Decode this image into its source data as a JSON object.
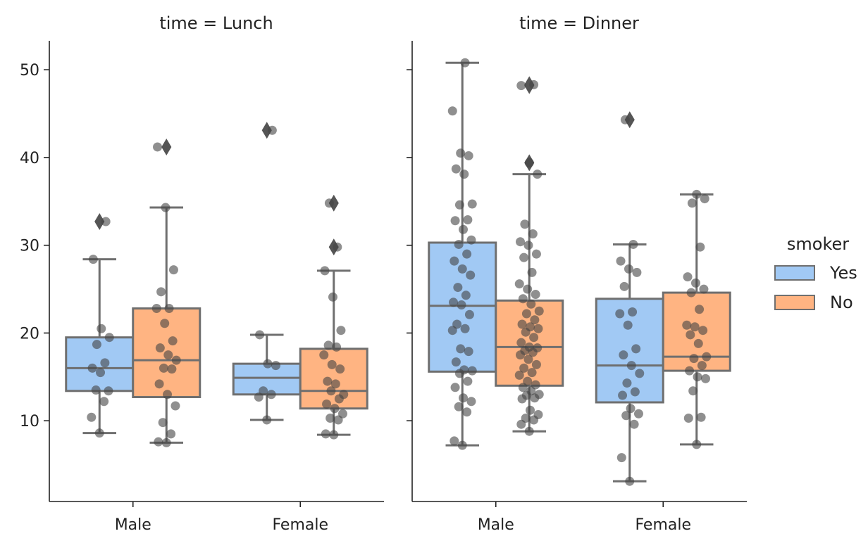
{
  "chart_data": {
    "type": "box",
    "yticks": [
      10,
      20,
      30,
      40,
      50
    ],
    "ylim": [
      0.8,
      53.3
    ],
    "categories": [
      "Male",
      "Female"
    ],
    "hue_order": [
      "Yes",
      "No"
    ],
    "colors": {
      "Yes": "#a1c9f4",
      "No": "#ffb482",
      "line": "#6f6f6f",
      "points": "#444444"
    },
    "legend": {
      "title": "smoker",
      "items": [
        {
          "label": "Yes",
          "color": "#a1c9f4"
        },
        {
          "label": "No",
          "color": "#ffb482"
        }
      ]
    },
    "panels": [
      {
        "title": "time = Lunch",
        "boxes": [
          {
            "category": "Male",
            "hue": "Yes",
            "whisker_low": 8.6,
            "q1": 13.4,
            "median": 16.0,
            "q3": 19.5,
            "whisker_high": 28.4,
            "outliers": [
              32.7
            ],
            "points": [
              8.6,
              10.4,
              12.2,
              13.5,
              13.4,
              15.5,
              16.0,
              16.6,
              18.7,
              19.5,
              20.5,
              28.4,
              32.7
            ]
          },
          {
            "category": "Male",
            "hue": "No",
            "whisker_low": 7.5,
            "q1": 12.7,
            "median": 16.9,
            "q3": 22.8,
            "whisker_high": 34.3,
            "outliers": [
              41.2
            ],
            "points": [
              7.5,
              7.6,
              8.5,
              9.8,
              11.7,
              13.0,
              14.2,
              15.9,
              16.0,
              16.9,
              17.5,
              18.3,
              19.1,
              21.1,
              22.8,
              22.8,
              24.7,
              27.2,
              34.3,
              41.2
            ]
          },
          {
            "category": "Female",
            "hue": "Yes",
            "whisker_low": 10.1,
            "q1": 13.0,
            "median": 14.9,
            "q3": 16.5,
            "whisker_high": 19.8,
            "outliers": [
              43.1
            ],
            "points": [
              10.1,
              12.7,
              13.0,
              13.4,
              16.3,
              16.5,
              19.8,
              43.1
            ]
          },
          {
            "category": "Female",
            "hue": "No",
            "whisker_low": 8.4,
            "q1": 11.4,
            "median": 13.4,
            "q3": 18.2,
            "whisker_high": 27.1,
            "outliers": [
              29.8,
              34.8
            ],
            "points": [
              8.4,
              8.5,
              10.1,
              10.3,
              10.8,
              11.4,
              11.9,
              12.5,
              13.4,
              13.0,
              14.2,
              14.5,
              15.9,
              16.4,
              17.5,
              18.4,
              18.6,
              20.3,
              24.1,
              27.1,
              29.8,
              34.8
            ]
          }
        ]
      },
      {
        "title": "time = Dinner",
        "boxes": [
          {
            "category": "Male",
            "hue": "Yes",
            "whisker_low": 7.2,
            "q1": 15.6,
            "median": 23.1,
            "q3": 30.3,
            "whisker_high": 50.8,
            "outliers": [],
            "points": [
              7.2,
              7.7,
              11.0,
              11.6,
              12.2,
              12.6,
              13.8,
              14.5,
              15.4,
              15.7,
              15.8,
              16.7,
              17.9,
              18.2,
              20.3,
              20.5,
              21.0,
              22.1,
              23.2,
              23.5,
              24.3,
              25.2,
              26.6,
              27.3,
              28.2,
              29.0,
              30.1,
              30.6,
              31.8,
              32.8,
              32.9,
              34.6,
              34.7,
              38.1,
              38.7,
              40.2,
              40.5,
              45.3,
              50.8
            ]
          },
          {
            "category": "Male",
            "hue": "No",
            "whisker_low": 8.8,
            "q1": 14.0,
            "median": 18.4,
            "q3": 23.7,
            "whisker_high": 38.1,
            "outliers": [
              39.4,
              48.2,
              48.3
            ],
            "points": [
              8.8,
              9.6,
              10.1,
              10.3,
              10.7,
              11.2,
              12.5,
              12.6,
              12.9,
              13.0,
              13.4,
              13.8,
              14.1,
              14.5,
              15.2,
              15.5,
              16.0,
              16.4,
              17.0,
              17.5,
              17.8,
              18.0,
              18.3,
              18.4,
              18.9,
              19.5,
              20.1,
              20.5,
              20.7,
              21.0,
              21.5,
              22.2,
              22.5,
              23.3,
              23.9,
              24.4,
              25.0,
              25.6,
              26.9,
              28.6,
              29.0,
              30.0,
              30.4,
              31.3,
              32.4,
              38.1,
              39.4,
              48.2,
              48.3
            ]
          },
          {
            "category": "Female",
            "hue": "Yes",
            "whisker_low": 3.1,
            "q1": 12.1,
            "median": 16.3,
            "q3": 23.9,
            "whisker_high": 30.1,
            "outliers": [
              44.3
            ],
            "points": [
              3.1,
              5.8,
              9.6,
              10.6,
              10.8,
              11.4,
              12.9,
              13.3,
              14.3,
              15.4,
              16.3,
              17.5,
              18.2,
              20.9,
              22.2,
              22.4,
              25.3,
              26.9,
              27.3,
              28.2,
              30.1,
              44.3
            ]
          },
          {
            "category": "Female",
            "hue": "No",
            "whisker_low": 7.3,
            "q1": 15.7,
            "median": 17.3,
            "q3": 24.6,
            "whisker_high": 35.8,
            "outliers": [],
            "points": [
              7.3,
              10.3,
              10.4,
              13.4,
              14.8,
              15.0,
              15.7,
              16.3,
              17.1,
              17.3,
              18.8,
              19.8,
              20.3,
              20.7,
              20.9,
              22.7,
              24.6,
              25.0,
              25.7,
              26.4,
              29.8,
              34.8,
              35.3,
              35.8
            ]
          }
        ]
      }
    ]
  }
}
